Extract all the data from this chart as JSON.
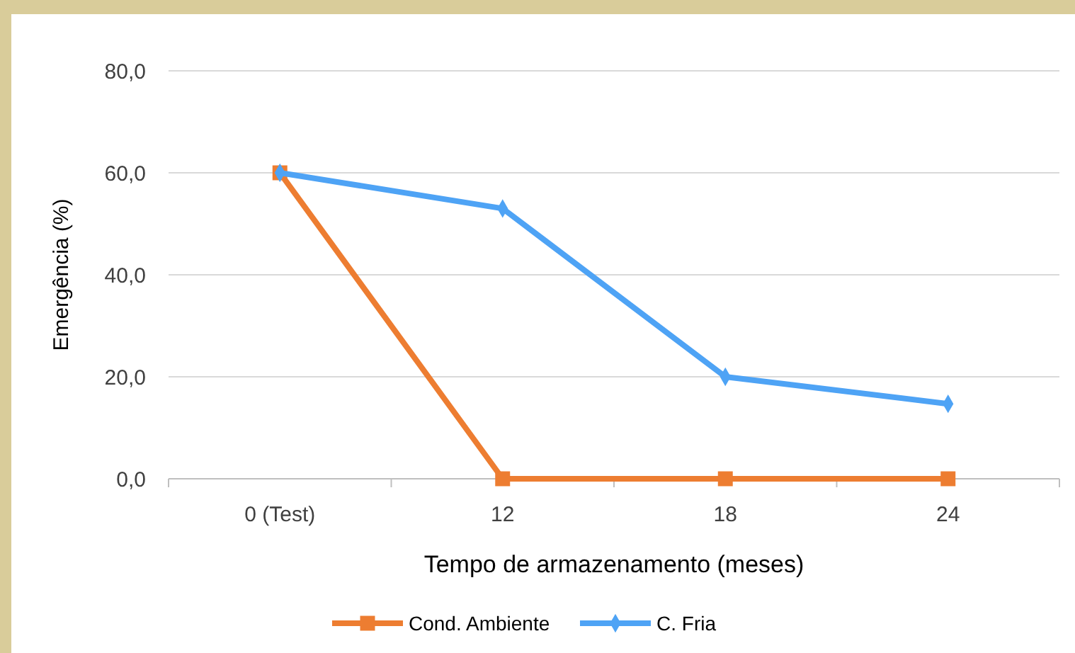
{
  "chart_data": {
    "type": "line",
    "xlabel": "Tempo de armazenamento (meses)",
    "ylabel": "Emergência (%)",
    "categories": [
      "0 (Test)",
      "12",
      "18",
      "24"
    ],
    "series": [
      {
        "name": "Cond. Ambiente",
        "color": "#ed7d31",
        "marker": "square",
        "values": [
          60,
          0,
          0,
          0
        ]
      },
      {
        "name": "C. Fria",
        "color": "#4ea3f5",
        "marker": "diamond",
        "values": [
          60,
          53,
          20,
          14.7
        ]
      }
    ],
    "ylim": [
      0,
      80
    ],
    "yticks": [
      {
        "value": 0,
        "label": "0,0"
      },
      {
        "value": 20,
        "label": "20,0"
      },
      {
        "value": 40,
        "label": "40,0"
      },
      {
        "value": 60,
        "label": "60,0"
      },
      {
        "value": 80,
        "label": "80,0"
      }
    ],
    "grid": "y",
    "legend": "bottom",
    "line_style": "solid"
  }
}
